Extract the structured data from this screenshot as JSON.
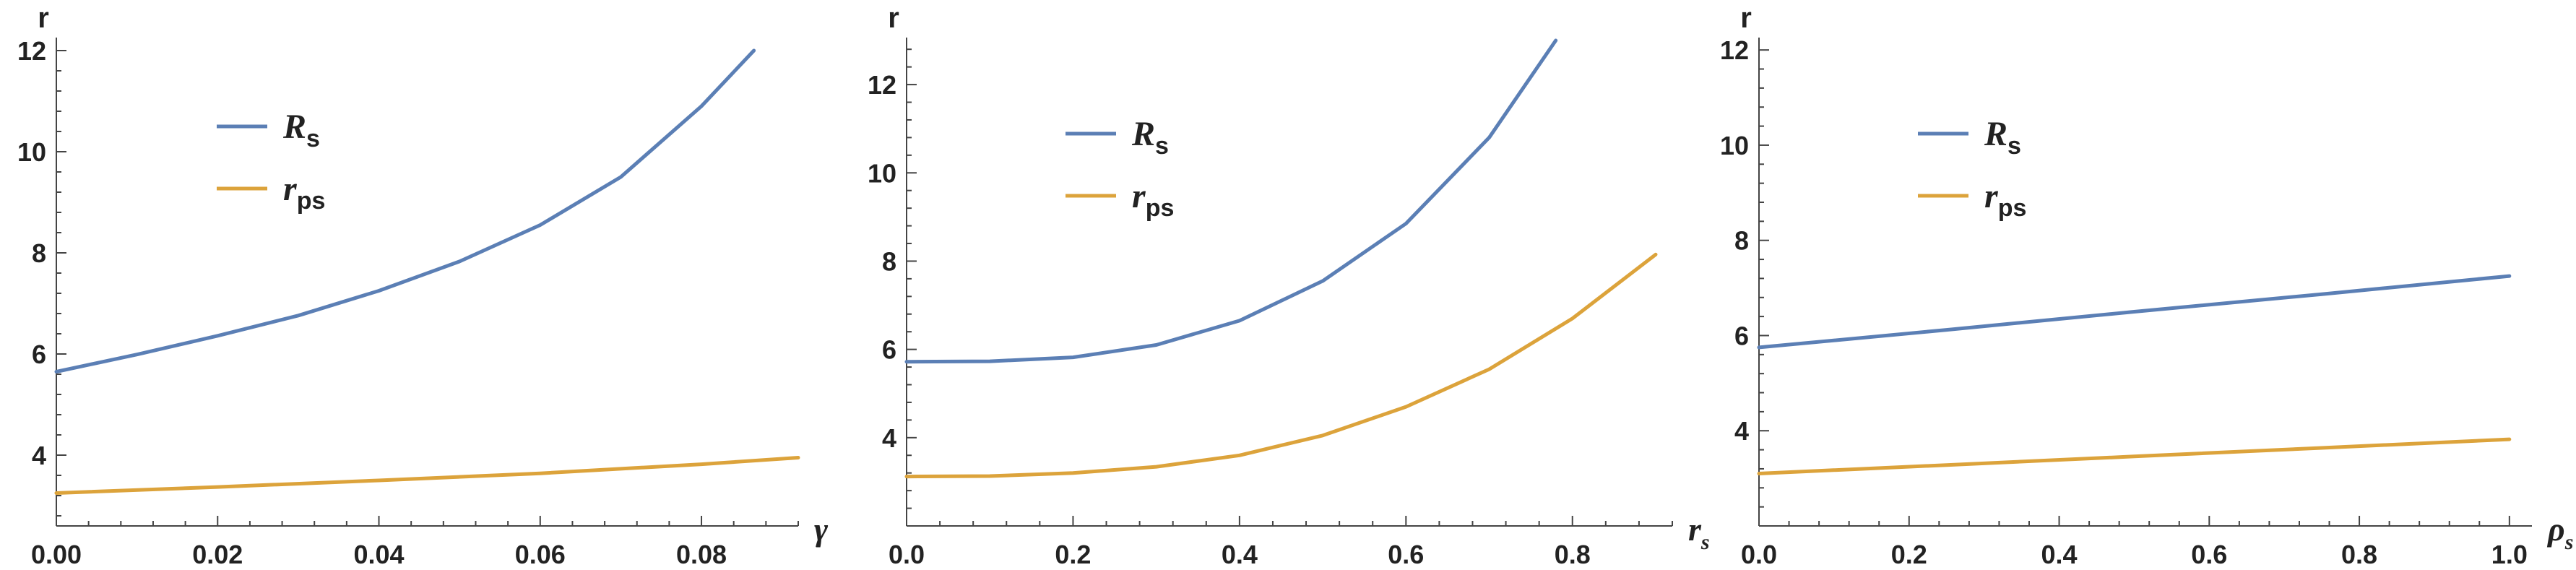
{
  "colors": {
    "Rs": "#5b7fb5",
    "rps": "#dca33b",
    "axis": "#444444"
  },
  "chart_data": [
    {
      "type": "line",
      "xlabel": "γ",
      "ylabel": "r",
      "xlim": [
        0,
        0.092
      ],
      "ylim": [
        2.6,
        12.2
      ],
      "xticks": [
        0.0,
        0.02,
        0.04,
        0.06,
        0.08
      ],
      "xtick_labels": [
        "0.00",
        "0.02",
        "0.04",
        "0.06",
        "0.08"
      ],
      "yticks": [
        4,
        6,
        8,
        10,
        12
      ],
      "ytick_labels": [
        "4",
        "6",
        "8",
        "10",
        "12"
      ],
      "grid": false,
      "legend": "top-left",
      "series": [
        {
          "name": "R",
          "sub": "s",
          "color": "#5b7fb5",
          "x": [
            0.0,
            0.01,
            0.02,
            0.03,
            0.04,
            0.05,
            0.06,
            0.07,
            0.08,
            0.0865
          ],
          "y": [
            5.65,
            5.99,
            6.36,
            6.76,
            7.25,
            7.83,
            8.55,
            9.5,
            10.9,
            12.0
          ]
        },
        {
          "name": "r",
          "sub": "ps",
          "color": "#dca33b",
          "x": [
            0.0,
            0.02,
            0.04,
            0.06,
            0.08,
            0.092
          ],
          "y": [
            3.25,
            3.37,
            3.5,
            3.64,
            3.82,
            3.95
          ]
        }
      ]
    },
    {
      "type": "line",
      "xlabel": "r",
      "xlabel_sub": "s",
      "ylabel": "r",
      "xlim": [
        0,
        0.92
      ],
      "ylim": [
        2.0,
        13.0
      ],
      "xticks": [
        0.0,
        0.2,
        0.4,
        0.6,
        0.8
      ],
      "xtick_labels": [
        "0.0",
        "0.2",
        "0.4",
        "0.6",
        "0.8"
      ],
      "yticks": [
        4,
        6,
        8,
        10,
        12
      ],
      "ytick_labels": [
        "4",
        "6",
        "8",
        "10",
        "12"
      ],
      "grid": false,
      "legend": "top-left",
      "series": [
        {
          "name": "R",
          "sub": "s",
          "color": "#5b7fb5",
          "x": [
            0.0,
            0.1,
            0.2,
            0.3,
            0.4,
            0.5,
            0.6,
            0.7,
            0.78
          ],
          "y": [
            5.72,
            5.73,
            5.82,
            6.1,
            6.65,
            7.55,
            8.85,
            10.8,
            13.0
          ]
        },
        {
          "name": "r",
          "sub": "ps",
          "color": "#dca33b",
          "x": [
            0.0,
            0.1,
            0.2,
            0.3,
            0.4,
            0.5,
            0.6,
            0.7,
            0.8,
            0.9
          ],
          "y": [
            3.12,
            3.13,
            3.2,
            3.34,
            3.6,
            4.05,
            4.7,
            5.55,
            6.7,
            8.15
          ]
        }
      ]
    },
    {
      "type": "line",
      "xlabel": "ρ",
      "xlabel_sub": "s",
      "ylabel": "r",
      "xlim": [
        0,
        1.03
      ],
      "ylim": [
        2.0,
        12.2
      ],
      "xticks": [
        0.0,
        0.2,
        0.4,
        0.6,
        0.8,
        1.0
      ],
      "xtick_labels": [
        "0.0",
        "0.2",
        "0.4",
        "0.6",
        "0.8",
        "1.0"
      ],
      "yticks": [
        4,
        6,
        8,
        10,
        12
      ],
      "ytick_labels": [
        "4",
        "6",
        "8",
        "10",
        "12"
      ],
      "grid": false,
      "legend": "top-left",
      "series": [
        {
          "name": "R",
          "sub": "s",
          "color": "#5b7fb5",
          "x": [
            0.0,
            0.25,
            0.5,
            0.75,
            1.0
          ],
          "y": [
            5.75,
            6.12,
            6.5,
            6.87,
            7.25
          ]
        },
        {
          "name": "r",
          "sub": "ps",
          "color": "#dca33b",
          "x": [
            0.0,
            0.25,
            0.5,
            0.75,
            1.0
          ],
          "y": [
            3.1,
            3.28,
            3.46,
            3.64,
            3.82
          ]
        }
      ]
    }
  ]
}
